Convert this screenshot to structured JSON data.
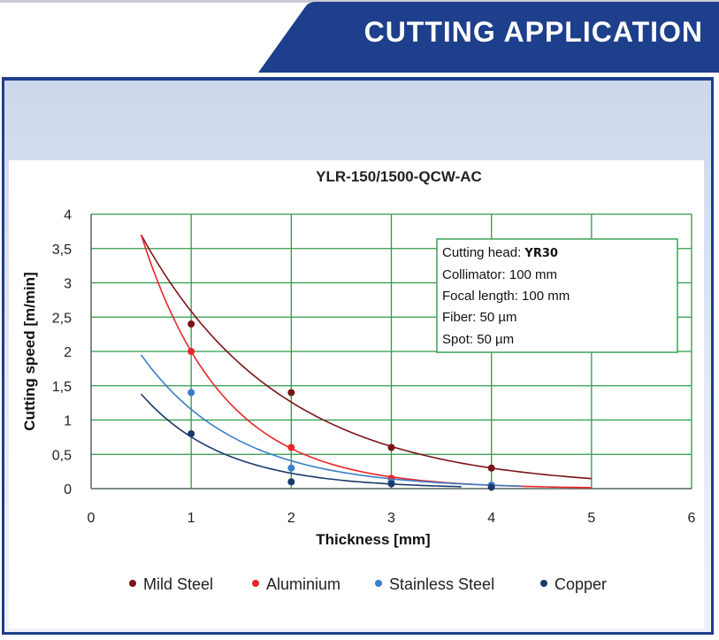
{
  "header": {
    "title": "CUTTING APPLICATION"
  },
  "colors": {
    "banner": "#1d3f8c",
    "frame": "#1d3f8c",
    "grid": "#2e9a4a",
    "info_border": "#3aa35a"
  },
  "info_box": {
    "head_label": "Cutting head: ",
    "head_value": "YR30",
    "lines": [
      "Collimator: 100 mm",
      "Focal length: 100 mm",
      "Fiber: 50 µm",
      "Spot: 50 µm"
    ]
  },
  "chart_data": {
    "type": "scatter",
    "title": "YLR-150/1500-QCW-AC",
    "xlabel": "Thickness [mm]",
    "ylabel": "Cutting speed [m/min]",
    "xlim": [
      0,
      6
    ],
    "ylim": [
      0,
      4
    ],
    "x_ticks": [
      "0",
      "1",
      "2",
      "3",
      "4",
      "5",
      "6"
    ],
    "y_ticks": [
      "0",
      "0,5",
      "1",
      "1,5",
      "2",
      "2,5",
      "3",
      "3,5",
      "4"
    ],
    "grid": true,
    "legend_position": "bottom",
    "trendlines": true,
    "series": [
      {
        "name": "Mild Steel",
        "color": "#7b1416",
        "x": [
          1,
          2,
          3,
          4
        ],
        "y": [
          2.4,
          1.4,
          0.6,
          0.3
        ],
        "fit_range": [
          0.5,
          5.0
        ],
        "fit_start": 3.7
      },
      {
        "name": "Aluminium",
        "color": "#e8262a",
        "x": [
          1,
          2,
          3,
          4
        ],
        "y": [
          2.0,
          0.6,
          0.15,
          0.05
        ],
        "fit_range": [
          0.5,
          5.0
        ],
        "fit_start": 3.7
      },
      {
        "name": "Stainless Steel",
        "color": "#3a7fc8",
        "x": [
          1,
          2,
          3,
          4
        ],
        "y": [
          1.4,
          0.3,
          0.1,
          0.05
        ],
        "fit_range": [
          0.5,
          4.3
        ],
        "fit_start": 1.95
      },
      {
        "name": "Copper",
        "color": "#1b3a6b",
        "x": [
          1,
          2,
          3,
          4
        ],
        "y": [
          0.8,
          0.1,
          0.07,
          0.02
        ],
        "fit_range": [
          0.5,
          3.7
        ],
        "fit_start": 1.38
      }
    ]
  }
}
